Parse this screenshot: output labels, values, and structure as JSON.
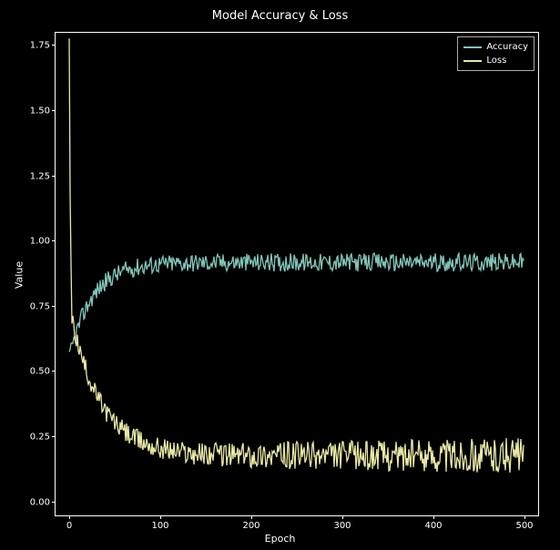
{
  "chart": {
    "type": "line",
    "title": "Model Accuracy & Loss",
    "title_fontsize": 13,
    "xlabel": "Epoch",
    "ylabel": "Value",
    "label_fontsize": 11,
    "tick_fontsize": 10,
    "background_color": "#000000",
    "axes_facecolor": "#000000",
    "spine_color": "#ffffff",
    "text_color": "#ffffff",
    "xlim": [
      -15,
      515
    ],
    "ylim": [
      -0.05,
      1.8
    ],
    "xticks": [
      0,
      100,
      200,
      300,
      400,
      500
    ],
    "yticks": [
      0.0,
      0.25,
      0.5,
      0.75,
      1.0,
      1.25,
      1.5,
      1.75
    ],
    "ytick_labels": [
      "0.00",
      "0.25",
      "0.50",
      "0.75",
      "1.00",
      "1.25",
      "1.50",
      "1.75"
    ],
    "line_width": 1.3,
    "series": [
      {
        "name": "Accuracy",
        "color": "#80c4b7",
        "n_points": 500,
        "start_value": 0.55,
        "asymptote": 0.92,
        "rise_rate": 0.04,
        "noise_amp": 0.035,
        "initial_spike": false
      },
      {
        "name": "Loss",
        "color": "#e8e8a6",
        "n_points": 500,
        "start_value": 1.76,
        "asymptote": 0.18,
        "decay_rate": 0.03,
        "noise_amp": 0.07,
        "initial_spike": true,
        "spike_value": 1.76
      }
    ],
    "legend": {
      "position": "upper right",
      "border_color": "#aaaaaa",
      "facecolor": "#000000",
      "text_color": "#ffffff",
      "items": [
        "Accuracy",
        "Loss"
      ]
    }
  }
}
